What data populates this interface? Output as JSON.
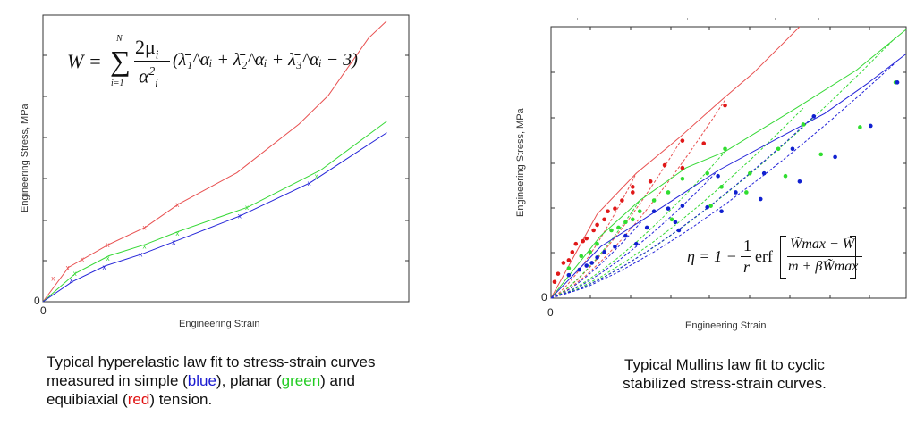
{
  "colors": {
    "blue": "#2424d8",
    "green": "#35d835",
    "red": "#e85050",
    "blue_dot": "#1020d0",
    "green_dot": "#30dd30",
    "red_dot": "#e01818"
  },
  "left_formula": {
    "lhs": "W =",
    "sigma": "∑",
    "sum_top": "N",
    "sum_bottom": "i=1",
    "num": "2μ",
    "num_sub": "i",
    "den": "α",
    "den_sup": "2",
    "den_sub": "i",
    "body": "(λ̄₁^αᵢ + λ̄₂^αᵢ + λ̄₃^αᵢ − 3)"
  },
  "right_formula": {
    "lhs": "η = 1 −",
    "frac_num": "1",
    "frac_den": "r",
    "erf": "erf",
    "num": "W̃max − W̃",
    "den": "m + βW̃max"
  },
  "captions": {
    "left": {
      "l1": "Typical hyperelastic law fit to stress-strain curves",
      "l2a": "measured in simple (",
      "blue": "blue",
      "l2b": "), planar (",
      "green": "green",
      "l2c": ") and",
      "l3a": "equibiaxial (",
      "red": "red",
      "l3b": ") tension."
    },
    "right": {
      "l1": "Typical Mullins law fit to cyclic",
      "l2": "stabilized stress-strain curves."
    }
  },
  "chart_data": [
    {
      "type": "line",
      "title": "",
      "xlabel": "Engineering Strain",
      "ylabel": "Engineering Stress, MPa",
      "x_ticks": [
        "0"
      ],
      "y_ticks": [
        "0"
      ],
      "xlim": [
        0,
        1
      ],
      "ylim": [
        0,
        1
      ],
      "series": [
        {
          "name": "equibiaxial (red) fit",
          "color": "red",
          "x": [
            0,
            0.07,
            0.18,
            0.28,
            0.37,
            0.53,
            0.7,
            0.78,
            0.89,
            0.94
          ],
          "y": [
            0,
            0.12,
            0.2,
            0.26,
            0.34,
            0.45,
            0.62,
            0.72,
            0.92,
            0.98
          ]
        },
        {
          "name": "planar (green) fit",
          "color": "green",
          "x": [
            0,
            0.09,
            0.18,
            0.28,
            0.37,
            0.56,
            0.76,
            0.94
          ],
          "y": [
            0,
            0.1,
            0.16,
            0.2,
            0.245,
            0.33,
            0.46,
            0.63
          ]
        },
        {
          "name": "simple (blue) fit",
          "color": "blue",
          "x": [
            0,
            0.08,
            0.17,
            0.27,
            0.36,
            0.54,
            0.73,
            0.94
          ],
          "y": [
            0,
            0.07,
            0.125,
            0.166,
            0.21,
            0.3,
            0.415,
            0.59
          ]
        }
      ],
      "markers": [
        {
          "name": "equibiaxial (red) test",
          "color": "red",
          "x": [
            0.03,
            0.07,
            0.11,
            0.18,
            0.28,
            0.37
          ],
          "y": [
            0.083,
            0.12,
            0.15,
            0.2,
            0.26,
            0.34
          ]
        },
        {
          "name": "planar (green) test",
          "color": "green",
          "x": [
            0.09,
            0.18,
            0.28,
            0.37,
            0.56,
            0.75
          ],
          "y": [
            0.1,
            0.153,
            0.195,
            0.24,
            0.33,
            0.44
          ]
        },
        {
          "name": "simple (blue) test",
          "color": "blue",
          "x": [
            0.08,
            0.17,
            0.27,
            0.36,
            0.54,
            0.73
          ],
          "y": [
            0.076,
            0.122,
            0.166,
            0.208,
            0.3,
            0.414
          ]
        }
      ]
    },
    {
      "type": "scatter",
      "title": "",
      "xlabel": "Engineering Strain",
      "ylabel": "Engineering Stress, MPa",
      "x_ticks": [
        "0"
      ],
      "y_ticks": [
        "0"
      ],
      "xlim": [
        0,
        1
      ],
      "ylim": [
        0,
        1
      ],
      "series": [
        {
          "name": "red Mullins fit",
          "color": "red",
          "x": [
            0,
            0.13,
            0.24,
            0.36,
            0.48,
            0.57,
            0.7
          ],
          "y": [
            0,
            0.31,
            0.46,
            0.59,
            0.73,
            0.83,
            1.0
          ]
        },
        {
          "name": "green Mullins fit",
          "color": "green",
          "x": [
            0,
            0.14,
            0.25,
            0.38,
            0.49,
            0.69,
            0.86,
            1.0
          ],
          "y": [
            0,
            0.23,
            0.36,
            0.48,
            0.54,
            0.7,
            0.84,
            0.99
          ]
        },
        {
          "name": "blue Mullins fit",
          "color": "blue",
          "x": [
            0,
            0.14,
            0.26,
            0.47,
            0.64,
            0.77,
            0.89,
            1.0
          ],
          "y": [
            0,
            0.19,
            0.29,
            0.47,
            0.59,
            0.68,
            0.79,
            0.9
          ]
        }
      ],
      "unloading": [
        {
          "color": "red",
          "ends": [
            [
              0.49,
              0.73
            ],
            [
              0.37,
              0.59
            ],
            [
              0.24,
              0.46
            ]
          ]
        },
        {
          "color": "green",
          "ends": [
            [
              0.97,
              0.96
            ],
            [
              0.71,
              0.7
            ],
            [
              0.49,
              0.54
            ],
            [
              0.25,
              0.36
            ]
          ]
        },
        {
          "color": "blue",
          "ends": [
            [
              0.98,
              0.88
            ],
            [
              0.74,
              0.67
            ],
            [
              0.47,
              0.47
            ],
            [
              0.26,
              0.29
            ]
          ]
        }
      ],
      "points": [
        {
          "color": "red",
          "x": [
            0.49,
            0.43,
            0.37,
            0.37,
            0.32,
            0.28,
            0.23,
            0.2,
            0.18,
            0.15,
            0.12,
            0.09,
            0.06,
            0.035,
            0.02,
            0.01,
            0.07,
            0.13,
            0.1,
            0.05,
            0.16,
            0.23
          ],
          "y": [
            0.71,
            0.57,
            0.58,
            0.48,
            0.49,
            0.43,
            0.41,
            0.36,
            0.33,
            0.29,
            0.25,
            0.21,
            0.17,
            0.13,
            0.09,
            0.06,
            0.2,
            0.27,
            0.22,
            0.14,
            0.32,
            0.39
          ]
        },
        {
          "color": "green",
          "x": [
            0.97,
            0.87,
            0.76,
            0.71,
            0.66,
            0.64,
            0.56,
            0.55,
            0.49,
            0.48,
            0.44,
            0.45,
            0.37,
            0.33,
            0.34,
            0.29,
            0.25,
            0.21,
            0.17,
            0.13,
            0.085,
            0.05,
            0.23,
            0.19,
            0.11
          ],
          "y": [
            0.795,
            0.63,
            0.53,
            0.64,
            0.45,
            0.55,
            0.46,
            0.39,
            0.55,
            0.41,
            0.46,
            0.34,
            0.44,
            0.39,
            0.29,
            0.36,
            0.32,
            0.28,
            0.25,
            0.2,
            0.155,
            0.11,
            0.29,
            0.26,
            0.17
          ]
        },
        {
          "color": "blue",
          "x": [
            0.975,
            0.9,
            0.8,
            0.74,
            0.7,
            0.68,
            0.6,
            0.59,
            0.52,
            0.48,
            0.47,
            0.44,
            0.37,
            0.36,
            0.35,
            0.33,
            0.29,
            0.27,
            0.24,
            0.21,
            0.18,
            0.15,
            0.115,
            0.08,
            0.05,
            0.13,
            0.1
          ],
          "y": [
            0.795,
            0.635,
            0.52,
            0.67,
            0.43,
            0.55,
            0.46,
            0.365,
            0.39,
            0.32,
            0.45,
            0.335,
            0.34,
            0.25,
            0.28,
            0.33,
            0.32,
            0.26,
            0.2,
            0.23,
            0.19,
            0.17,
            0.13,
            0.105,
            0.085,
            0.15,
            0.12
          ]
        }
      ]
    }
  ]
}
